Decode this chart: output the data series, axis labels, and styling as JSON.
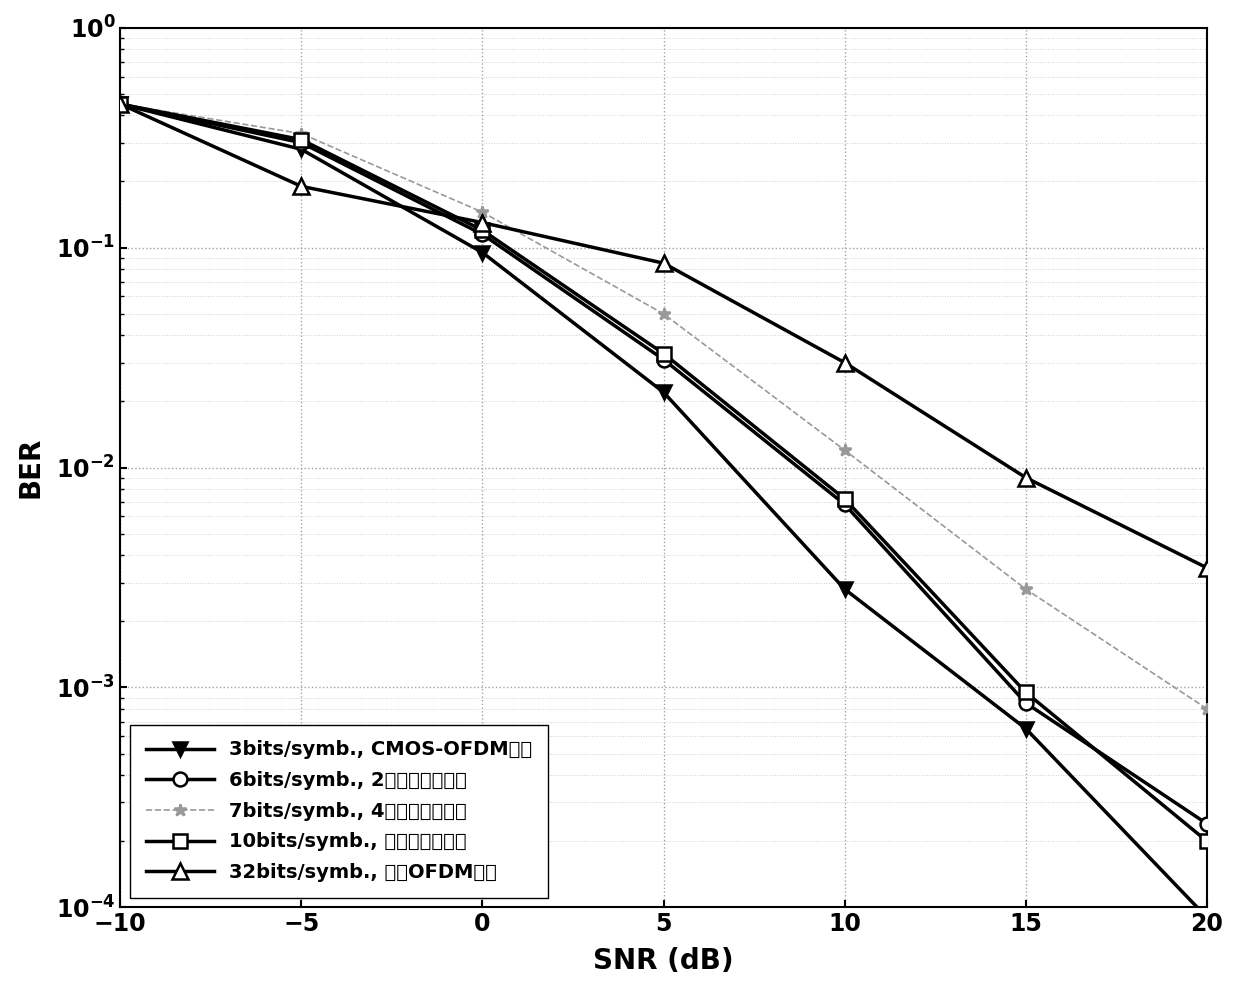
{
  "snr": [
    -10,
    -5,
    0,
    5,
    10,
    15,
    20
  ],
  "series": [
    {
      "label": "3bits/symb., CMOS-OFDM方法",
      "color": "#000000",
      "linewidth": 2.5,
      "linestyle": "-",
      "marker": "v",
      "markersize": 10,
      "markerfacecolor": "black",
      "markeredgecolor": "black",
      "ber": [
        0.45,
        0.28,
        0.095,
        0.022,
        0.0028,
        0.00065,
        9e-05
      ]
    },
    {
      "label": "6bits/symb., 2个序列子集方法",
      "color": "#000000",
      "linewidth": 2.5,
      "linestyle": "-",
      "marker": "o",
      "markersize": 10,
      "markerfacecolor": "white",
      "markeredgecolor": "black",
      "ber": [
        0.45,
        0.3,
        0.115,
        0.031,
        0.0068,
        0.00085,
        0.00024
      ]
    },
    {
      "label": "7bits/symb., 4个序列子集方法",
      "color": "#999999",
      "linewidth": 1.2,
      "linestyle": "--",
      "marker": "*",
      "markersize": 9,
      "markerfacecolor": "#999999",
      "markeredgecolor": "#999999",
      "ber": [
        0.45,
        0.33,
        0.145,
        0.05,
        0.012,
        0.0028,
        0.0008
      ]
    },
    {
      "label": "10bits/symb., 本发明专利方法",
      "color": "#000000",
      "linewidth": 2.5,
      "linestyle": "-",
      "marker": "s",
      "markersize": 10,
      "markerfacecolor": "white",
      "markeredgecolor": "black",
      "ber": [
        0.45,
        0.31,
        0.12,
        0.033,
        0.0072,
        0.00095,
        0.0002
      ]
    },
    {
      "label": "32bits/symb., 传统OFDM方法",
      "color": "#000000",
      "linewidth": 2.5,
      "linestyle": "-",
      "marker": "^",
      "markersize": 11,
      "markerfacecolor": "white",
      "markeredgecolor": "black",
      "ber": [
        0.45,
        0.19,
        0.13,
        0.085,
        0.03,
        0.009,
        0.0035
      ]
    }
  ],
  "xlabel": "SNR (dB)",
  "ylabel": "BER",
  "xlim": [
    -10,
    20
  ],
  "ylim_low": 0.0001,
  "ylim_high": 1.0,
  "xticks": [
    -10,
    -5,
    0,
    5,
    10,
    15,
    20
  ],
  "axis_label_fontsize": 20,
  "tick_fontsize": 17,
  "legend_fontsize": 14,
  "background_color": "#ffffff",
  "grid_major_color": "#999999",
  "grid_minor_color": "#bbbbbb"
}
